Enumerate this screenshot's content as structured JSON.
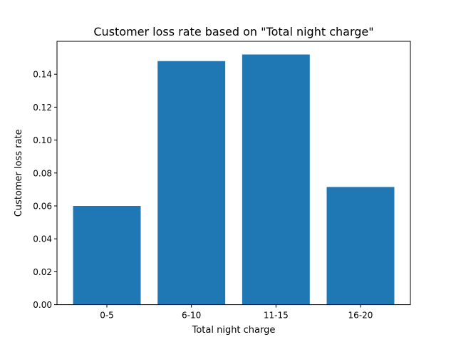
{
  "chart_data": {
    "type": "bar",
    "title": "Customer loss rate based on \"Total night charge\"",
    "xlabel": "Total night charge",
    "ylabel": "Customer loss rate",
    "categories": [
      "0-5",
      "6-10",
      "11-15",
      "16-20"
    ],
    "values": [
      0.06,
      0.148,
      0.152,
      0.0715
    ],
    "ylim": [
      0,
      0.16
    ],
    "yticks": [
      0.0,
      0.02,
      0.04,
      0.06,
      0.08,
      0.1,
      0.12,
      0.14
    ],
    "ytick_labels": [
      "0.00",
      "0.02",
      "0.04",
      "0.06",
      "0.08",
      "0.10",
      "0.12",
      "0.14"
    ],
    "bar_color": "#1f77b4",
    "grid": false,
    "legend": false
  }
}
